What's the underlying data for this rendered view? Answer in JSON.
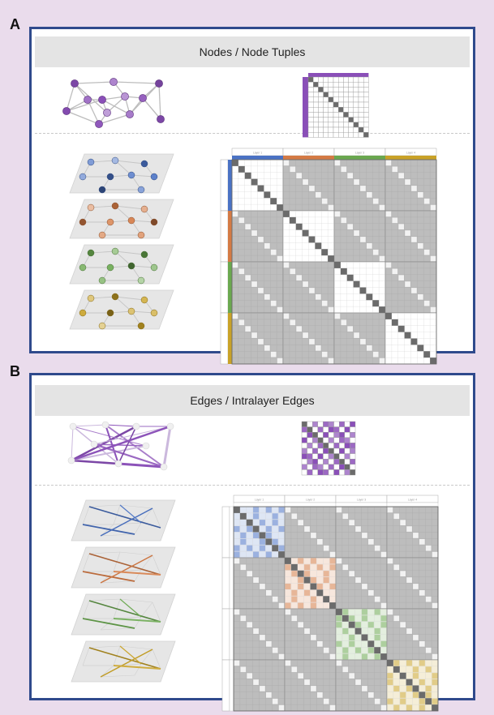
{
  "panels": {
    "a": {
      "letter": "A",
      "header": "Nodes / Node Tuples"
    },
    "b": {
      "letter": "B",
      "header": "Edges / Intralayer Edges"
    }
  },
  "layer_tabs": [
    "Layer 1",
    "Layer 2",
    "Layer 3",
    "Layer 4"
  ],
  "colors": {
    "border": "#2f4a8c",
    "background": "#eadcec",
    "header_bg": "#e4e4e4",
    "single_layer": "#8a4fb8",
    "layers": [
      "#4a72c4",
      "#d47a44",
      "#6aa84f",
      "#c9a227"
    ],
    "matrix_gray": "#bdbdbd",
    "diagonal": "#6b6b6b"
  }
}
